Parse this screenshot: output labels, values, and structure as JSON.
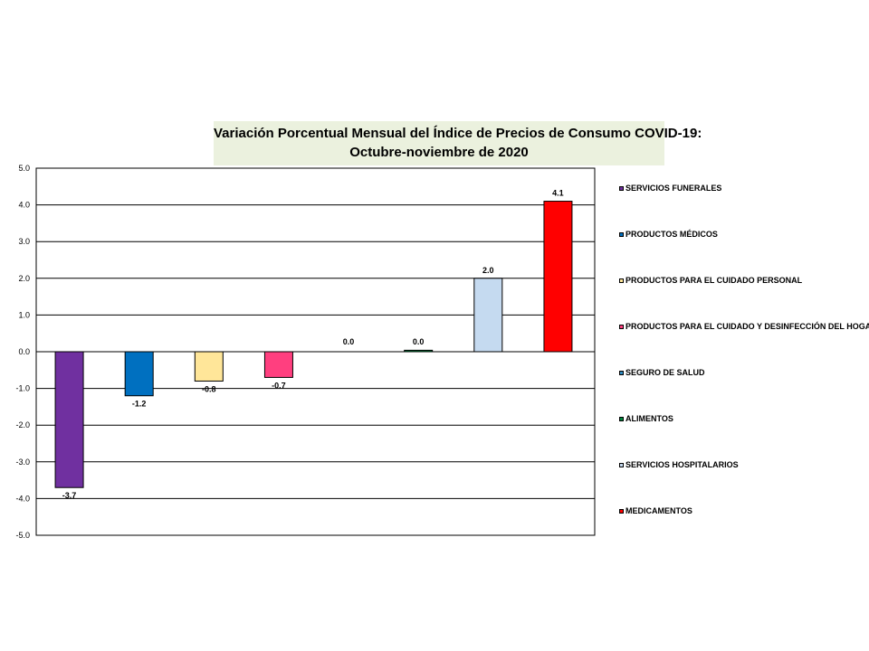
{
  "chart_data": {
    "type": "bar",
    "title": "Variación Porcentual Mensual del Índice de Precios de Consumo COVID-19:",
    "subtitle": "Octubre-noviembre de 2020",
    "ylim": [
      -5.0,
      5.0
    ],
    "yticks": [
      "5.0",
      "4.0",
      "3.0",
      "2.0",
      "1.0",
      "0.0",
      "-1.0",
      "-2.0",
      "-3.0",
      "-4.0",
      "-5.0"
    ],
    "grid": true,
    "legend_position": "right",
    "series": [
      {
        "name": "SERVICIOS FUNERALES",
        "value": -3.7,
        "label": "-3.7",
        "color": "#7030a0"
      },
      {
        "name": "PRODUCTOS MÉDICOS",
        "value": -1.2,
        "label": "-1.2",
        "color": "#0070c0"
      },
      {
        "name": "PRODUCTOS PARA EL CUIDADO PERSONAL",
        "value": -0.8,
        "label": "-0.8",
        "color": "#ffe699"
      },
      {
        "name": "PRODUCTOS PARA EL CUIDADO Y DESINFECCIÓN DEL HOGAR",
        "value": -0.7,
        "label": "-0.7",
        "color": "#ff3f7f"
      },
      {
        "name": "SEGURO DE SALUD",
        "value": 0.0,
        "label": "0.0",
        "color": "#2e8bc0"
      },
      {
        "name": "ALIMENTOS",
        "value": 0.04,
        "label": "0.0",
        "color": "#00863d"
      },
      {
        "name": "SERVICIOS HOSPITALARIOS",
        "value": 2.0,
        "label": "2.0",
        "color": "#c5daf0"
      },
      {
        "name": "MEDICAMENTOS",
        "value": 4.1,
        "label": "4.1",
        "color": "#ff0000"
      }
    ]
  }
}
